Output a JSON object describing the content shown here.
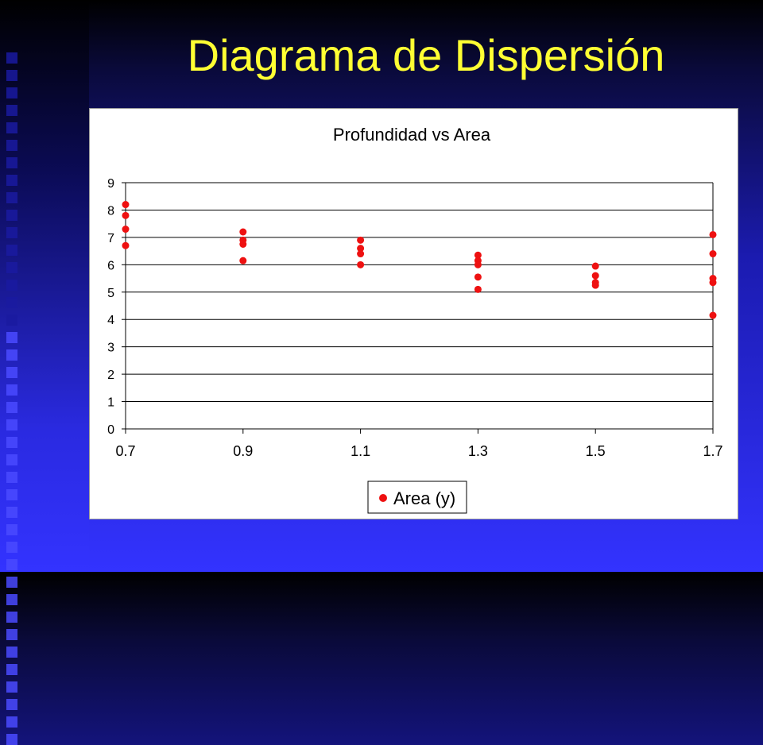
{
  "slide": {
    "title": "Diagrama de Dispersión",
    "title_color": "#ffff33",
    "background_color": "#3333ff"
  },
  "chart_data": {
    "type": "scatter",
    "title": "Profundidad vs Area",
    "xlabel": "",
    "ylabel": "",
    "xlim": [
      0.7,
      1.7
    ],
    "ylim": [
      0,
      9
    ],
    "x_ticks": [
      "0.7",
      "0.9",
      "1.1",
      "1.3",
      "1.5",
      "1.7"
    ],
    "y_ticks": [
      "0",
      "1",
      "2",
      "3",
      "4",
      "5",
      "6",
      "7",
      "8",
      "9"
    ],
    "grid": "horizontal",
    "legend_position": "bottom",
    "marker_color": "#ee1111",
    "series": [
      {
        "name": "Area (y)",
        "points": [
          [
            0.7,
            8.2
          ],
          [
            0.7,
            7.8
          ],
          [
            0.7,
            7.3
          ],
          [
            0.7,
            6.7
          ],
          [
            0.9,
            7.2
          ],
          [
            0.9,
            6.9
          ],
          [
            0.9,
            6.75
          ],
          [
            0.9,
            6.15
          ],
          [
            1.1,
            6.9
          ],
          [
            1.1,
            6.6
          ],
          [
            1.1,
            6.4
          ],
          [
            1.1,
            6.0
          ],
          [
            1.3,
            6.35
          ],
          [
            1.3,
            6.15
          ],
          [
            1.3,
            6.0
          ],
          [
            1.3,
            5.55
          ],
          [
            1.3,
            5.1
          ],
          [
            1.5,
            5.95
          ],
          [
            1.5,
            5.6
          ],
          [
            1.5,
            5.35
          ],
          [
            1.5,
            5.25
          ],
          [
            1.7,
            7.1
          ],
          [
            1.7,
            6.4
          ],
          [
            1.7,
            5.5
          ],
          [
            1.7,
            5.35
          ],
          [
            1.7,
            4.15
          ]
        ]
      }
    ]
  }
}
